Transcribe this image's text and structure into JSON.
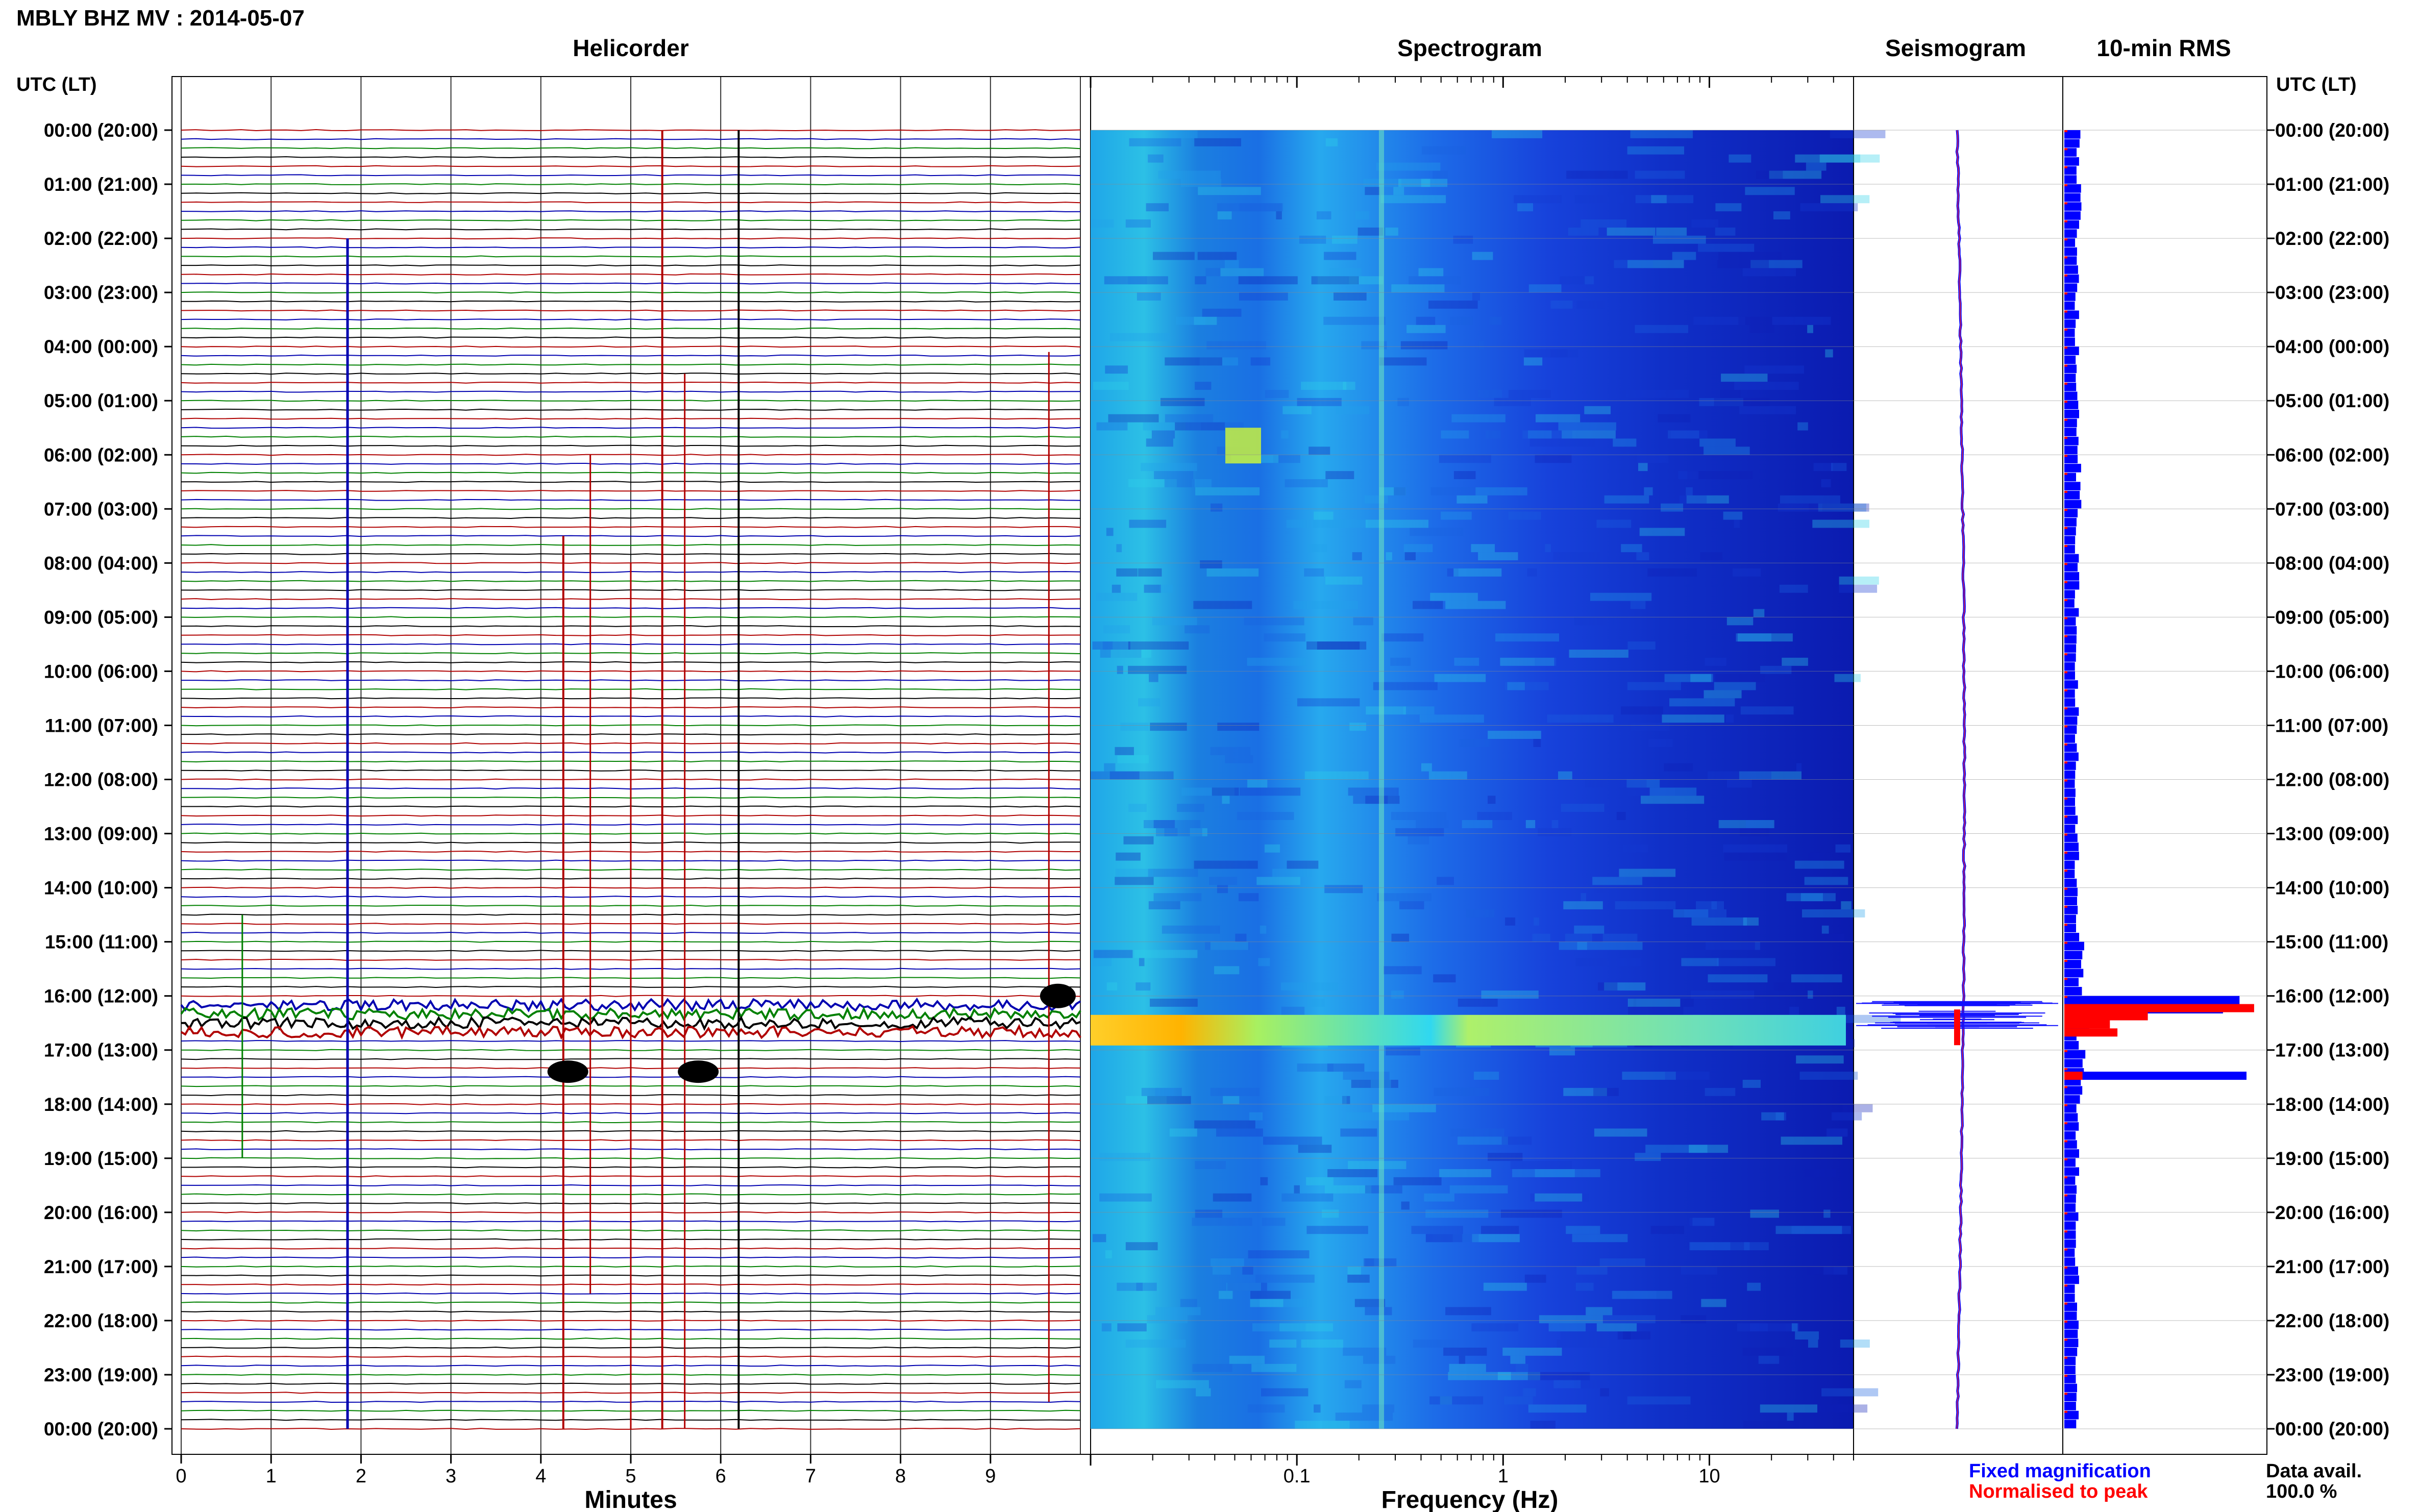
{
  "chart_data": {
    "type": "heatmap",
    "title": "MBLY BHZ MV : 2014-05-07",
    "panels": {
      "helicorder": "Helicorder",
      "spectrogram": "Spectrogram",
      "seismogram": "Seismogram",
      "rms": "10-min RMS"
    },
    "ylabel": "UTC (LT)",
    "ylabel_right": "UTC (LT)",
    "time_labels": [
      "00:00 (20:00)",
      "01:00 (21:00)",
      "02:00 (22:00)",
      "03:00 (23:00)",
      "04:00 (00:00)",
      "05:00 (01:00)",
      "06:00 (02:00)",
      "07:00 (03:00)",
      "08:00 (04:00)",
      "09:00 (05:00)",
      "10:00 (06:00)",
      "11:00 (07:00)",
      "12:00 (08:00)",
      "13:00 (09:00)",
      "14:00 (10:00)",
      "15:00 (11:00)",
      "16:00 (12:00)",
      "17:00 (13:00)",
      "18:00 (14:00)",
      "19:00 (15:00)",
      "20:00 (16:00)",
      "21:00 (17:00)",
      "22:00 (18:00)",
      "23:00 (19:00)",
      "00:00 (20:00)"
    ],
    "helicorder_axis": {
      "xlabel": "Minutes",
      "ticks": [
        "0",
        "1",
        "2",
        "3",
        "4",
        "5",
        "6",
        "7",
        "8",
        "9"
      ],
      "xlim": [
        0,
        10
      ]
    },
    "spectrogram_axis": {
      "xlabel": "Frequency (Hz)",
      "scale": "log",
      "ticks": [
        "0.1",
        "1",
        "10"
      ],
      "xlim": [
        0.01,
        50
      ]
    },
    "legend": {
      "fixed": "Fixed magnification",
      "normalised": "Normalised to peak",
      "fixed_color": "#0000ff",
      "normalised_color": "#ff0000"
    },
    "data_avail_label": "Data avail.",
    "data_avail_value": "100.0 %",
    "trace_colors": [
      "#b00000",
      "#0000b0",
      "#008000",
      "#000000"
    ],
    "rms_fixed_hours": [
      0.08,
      0.08,
      0.07,
      0.07,
      0.07,
      0.07,
      0.08,
      0.07,
      0.07,
      0.07,
      0.07,
      0.07,
      0.07,
      0.07,
      0.08,
      0.1,
      0.9,
      0.1,
      0.07,
      0.07,
      0.07,
      0.07,
      0.07,
      0.07
    ],
    "event_hour": 16.35,
    "grid": true
  }
}
